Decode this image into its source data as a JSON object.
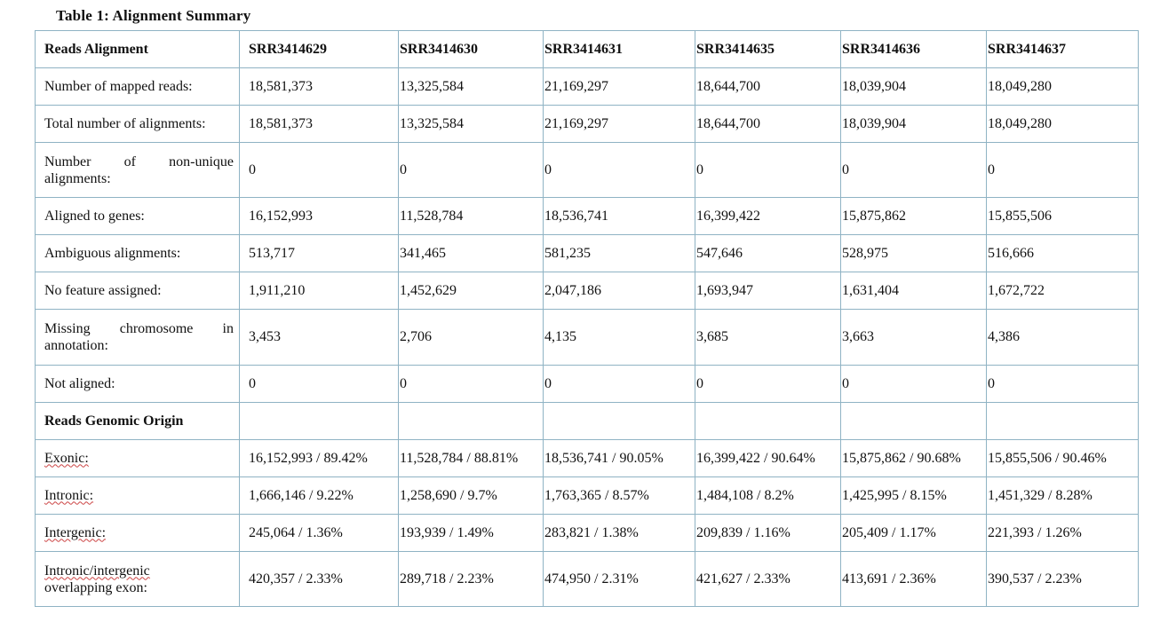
{
  "caption": "Table 1: Alignment Summary",
  "columns": [
    "Reads Alignment",
    "SRR3414629",
    "SRR3414630",
    "SRR3414631",
    "SRR3414635",
    "SRR3414636",
    "SRR3414637"
  ],
  "alignment_rows": [
    {
      "label": "Number of mapped reads:",
      "values": [
        "18,581,373",
        "13,325,584",
        "21,169,297",
        "18,644,700",
        "18,039,904",
        "18,049,280"
      ]
    },
    {
      "label": "Total number of alignments:",
      "values": [
        "18,581,373",
        "13,325,584",
        "21,169,297",
        "18,644,700",
        "18,039,904",
        "18,049,280"
      ]
    },
    {
      "label": "Number of non-unique alignments:",
      "values": [
        "0",
        "0",
        "0",
        "0",
        "0",
        "0"
      ]
    },
    {
      "label": "Aligned to genes:",
      "values": [
        "16,152,993",
        "11,528,784",
        "18,536,741",
        "16,399,422",
        "15,875,862",
        "15,855,506"
      ]
    },
    {
      "label": "Ambiguous alignments:",
      "values": [
        "513,717",
        "341,465",
        "581,235",
        "547,646",
        "528,975",
        "516,666"
      ]
    },
    {
      "label": "No feature assigned:",
      "values": [
        "1,911,210",
        "1,452,629",
        "2,047,186",
        "1,693,947",
        "1,631,404",
        "1,672,722"
      ]
    },
    {
      "label": "Missing chromosome in annotation:",
      "values": [
        "3,453",
        "2,706",
        "4,135",
        "3,685",
        "3,663",
        "4,386"
      ]
    },
    {
      "label": "Not aligned:",
      "values": [
        "0",
        "0",
        "0",
        "0",
        "0",
        "0"
      ]
    }
  ],
  "origin_header": "Reads Genomic Origin",
  "origin_rows": [
    {
      "label": "Exonic:",
      "values": [
        "16,152,993 / 89.42%",
        "11,528,784 / 88.81%",
        "18,536,741 / 90.05%",
        "16,399,422 / 90.64%",
        "15,875,862 / 90.68%",
        "15,855,506 / 90.46%"
      ]
    },
    {
      "label": "Intronic:",
      "values": [
        "1,666,146 / 9.22%",
        "1,258,690 / 9.7%",
        "1,763,365 / 8.57%",
        "1,484,108 / 8.2%",
        "1,425,995 / 8.15%",
        "1,451,329 / 8.28%"
      ]
    },
    {
      "label": "Intergenic:",
      "values": [
        "245,064 / 1.36%",
        "193,939 / 1.49%",
        "283,821 / 1.38%",
        "209,839 / 1.16%",
        "205,409 / 1.17%",
        "221,393 / 1.26%"
      ]
    },
    {
      "label_line1": "Intronic/intergenic",
      "label_line2": "overlapping exon:",
      "values": [
        "420,357 / 2.33%",
        "289,718 / 2.23%",
        "474,950 / 2.31%",
        "421,627 / 2.33%",
        "413,691 / 2.36%",
        "390,537 / 2.23%"
      ]
    }
  ]
}
